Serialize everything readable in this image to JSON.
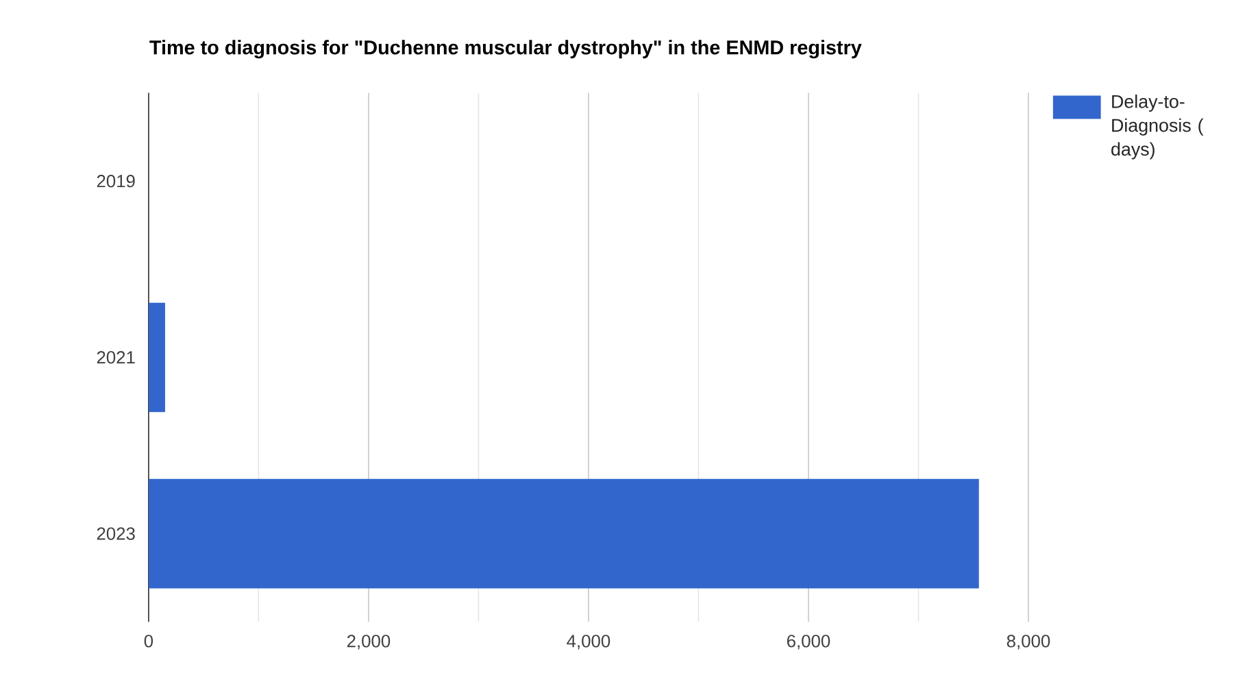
{
  "chart_data": {
    "type": "bar",
    "orientation": "horizontal",
    "title": "Time to diagnosis for \"Duchenne muscular dystrophy\" in the ENMD registry",
    "categories": [
      "2019",
      "2021",
      "2023"
    ],
    "series": [
      {
        "name": "Delay-to-Diagnosis ( days)",
        "color": "#3366cc",
        "values": [
          0,
          150,
          7550
        ]
      }
    ],
    "xlim": [
      0,
      8000
    ],
    "xticks": [
      0,
      {
        "value": 1000,
        "label": null
      },
      {
        "value": 2000,
        "label": "2,000"
      },
      {
        "value": 3000,
        "label": null
      },
      {
        "value": 4000,
        "label": "4,000"
      },
      {
        "value": 5000,
        "label": null
      },
      {
        "value": 6000,
        "label": "6,000"
      },
      {
        "value": 7000,
        "label": null
      },
      {
        "value": 8000,
        "label": "8,000"
      }
    ],
    "grid": "x",
    "legend": "top right"
  }
}
